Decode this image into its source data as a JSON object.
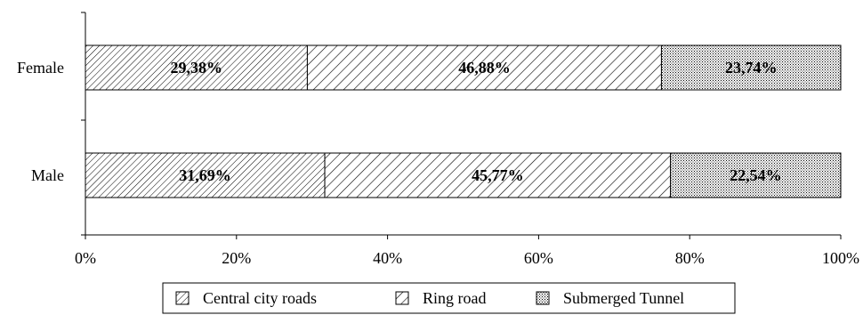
{
  "chart_data": {
    "type": "bar",
    "orientation": "horizontal",
    "stacked": true,
    "percent_scale": true,
    "categories": [
      "Female",
      "Male"
    ],
    "series": [
      {
        "name": "Central city roads",
        "values": [
          29.38,
          31.69
        ],
        "labels": [
          "29,38%",
          "31,69%"
        ],
        "pattern": "dense-diagonal-hatch"
      },
      {
        "name": "Ring road",
        "values": [
          46.88,
          45.77
        ],
        "labels": [
          "46,88%",
          "45,77%"
        ],
        "pattern": "diagonal-hatch"
      },
      {
        "name": "Submerged Tunnel",
        "values": [
          23.74,
          22.54
        ],
        "labels": [
          "23,74%",
          "22,54%"
        ],
        "pattern": "dotted"
      }
    ],
    "xlim": [
      0,
      100
    ],
    "xticks": [
      "0%",
      "20%",
      "40%",
      "60%",
      "80%",
      "100%"
    ],
    "title": "",
    "xlabel": "",
    "ylabel": "",
    "grid": false,
    "legend_position": "bottom"
  }
}
